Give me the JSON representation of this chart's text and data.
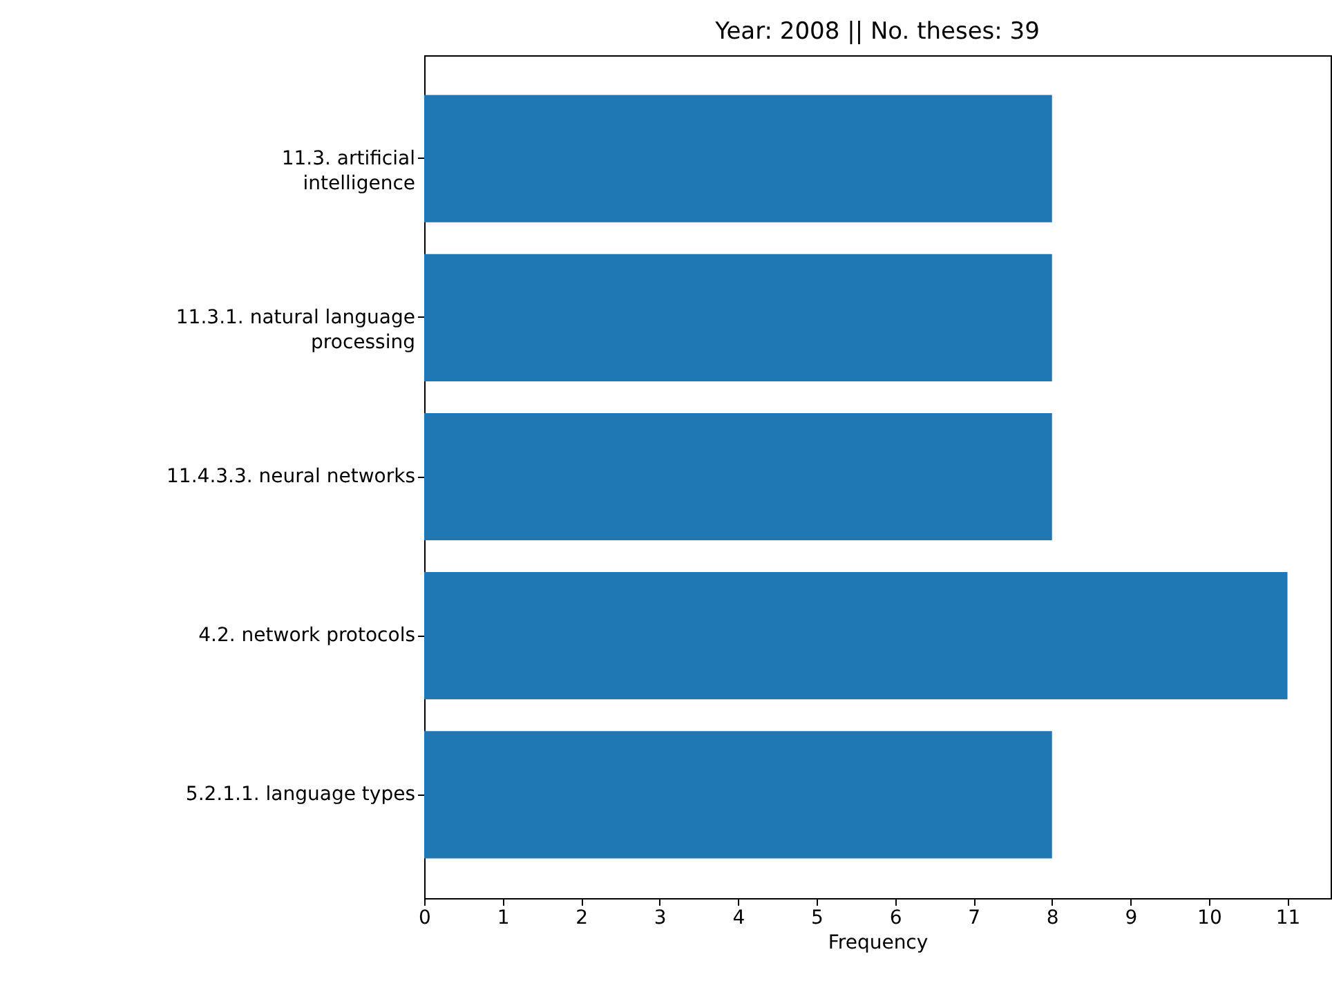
{
  "chart_data": {
    "type": "bar",
    "orientation": "horizontal",
    "title": "Year: 2008      ||      No. theses: 39",
    "xlabel": "Frequency",
    "categories": [
      "11.3. artificial intelligence",
      "11.3.1. natural language processing",
      "11.4.3.3. neural networks",
      "4.2. network protocols",
      "5.2.1.1. language types"
    ],
    "values": [
      8,
      8,
      8,
      11,
      8
    ],
    "color": "#1f77b4",
    "xlim": [
      0,
      11.55
    ],
    "xticks": [
      0,
      1,
      2,
      3,
      4,
      5,
      6,
      7,
      8,
      9,
      10,
      11
    ],
    "grid": false
  }
}
